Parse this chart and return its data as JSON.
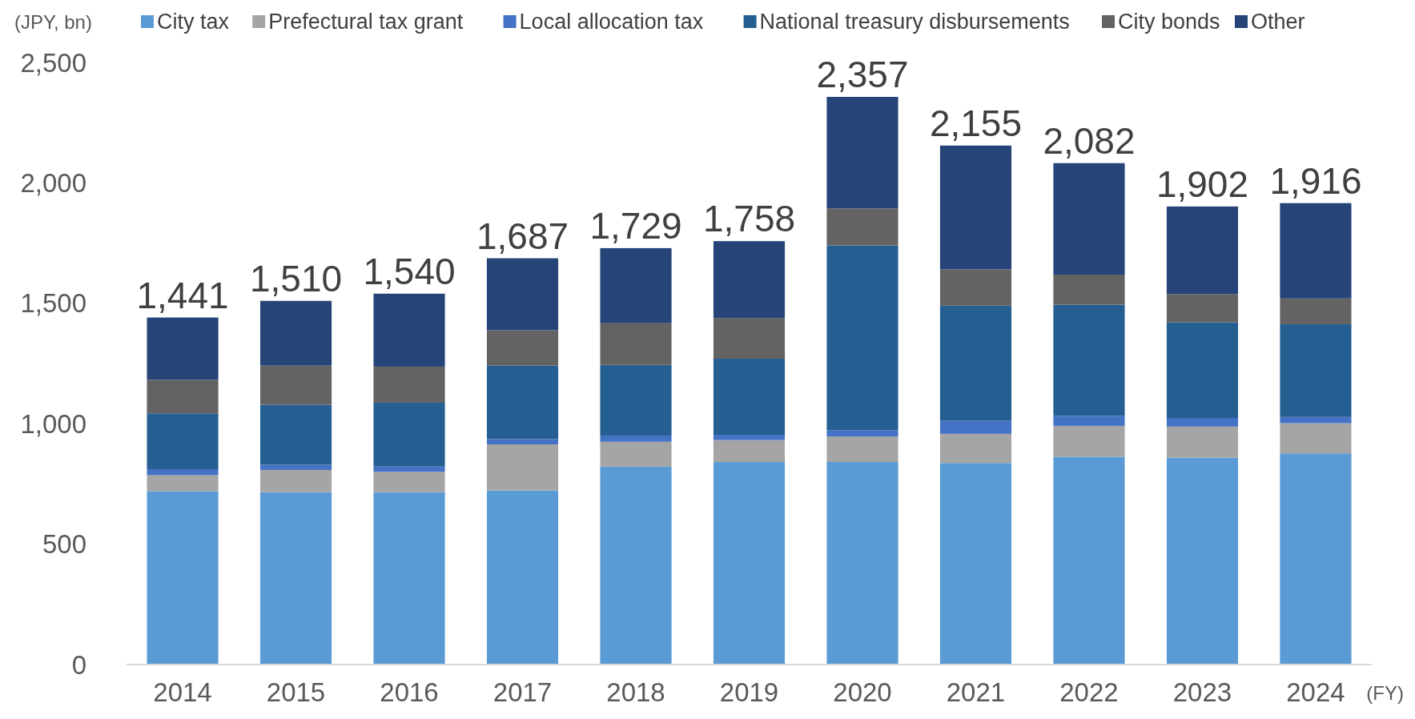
{
  "chart_data": {
    "type": "bar",
    "stacked": true,
    "categories": [
      "2014",
      "2015",
      "2016",
      "2017",
      "2018",
      "2019",
      "2020",
      "2021",
      "2022",
      "2023",
      "2024"
    ],
    "series": [
      {
        "name": "City tax",
        "color": "#5b9bd5",
        "values": [
          720,
          716,
          716,
          723,
          822,
          841,
          841,
          837,
          863,
          859,
          877
        ]
      },
      {
        "name": "Prefectural tax grant",
        "color": "#a5a5a5",
        "values": [
          66,
          92,
          84,
          191,
          103,
          91,
          106,
          121,
          128,
          129,
          125
        ]
      },
      {
        "name": "Local allocation tax",
        "color": "#4472c4",
        "values": [
          25,
          22,
          22,
          22,
          26,
          22,
          26,
          55,
          41,
          36,
          26
        ]
      },
      {
        "name": "National treasury disbursements",
        "color": "#255e91",
        "values": [
          232,
          249,
          265,
          305,
          293,
          316,
          767,
          477,
          462,
          397,
          385
        ]
      },
      {
        "name": "City bonds",
        "color": "#636363",
        "values": [
          139,
          162,
          150,
          147,
          173,
          169,
          154,
          151,
          125,
          117,
          107
        ]
      },
      {
        "name": "Other",
        "color": "#264478",
        "values": [
          259,
          269,
          303,
          299,
          312,
          319,
          463,
          514,
          463,
          364,
          396
        ]
      }
    ],
    "totals": [
      "1,441",
      "1,510",
      "1,540",
      "1,687",
      "1,729",
      "1,758",
      "2,357",
      "2,155",
      "2,082",
      "1,902",
      "1,916"
    ],
    "ylim": [
      0,
      2500
    ],
    "yticks": [
      0,
      500,
      {
        "value": 1000,
        "label": "1,000"
      },
      {
        "value": 1500,
        "label": "1,500"
      },
      {
        "value": 2000,
        "label": "2,000"
      },
      {
        "value": 2500,
        "label": "2,500"
      }
    ],
    "grid": false,
    "legend": "top",
    "annotations": [
      "(JPY, bn)",
      "(FY)"
    ]
  }
}
